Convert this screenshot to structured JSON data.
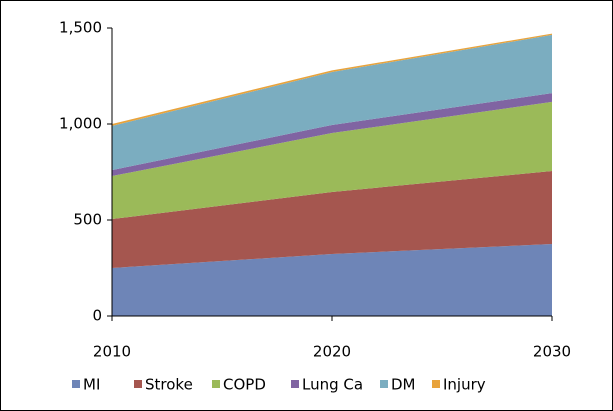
{
  "chart_data": {
    "type": "stacked_area",
    "x": [
      2010,
      2020,
      2030
    ],
    "series": [
      {
        "name": "MI",
        "color": "#6e85b7",
        "values": [
          250,
          323,
          375
        ]
      },
      {
        "name": "Stroke",
        "color": "#a5564f",
        "values": [
          255,
          323,
          380
        ]
      },
      {
        "name": "COPD",
        "color": "#9bba59",
        "values": [
          224,
          307,
          360
        ]
      },
      {
        "name": "Lung Ca",
        "color": "#8064a2",
        "values": [
          31,
          42,
          46
        ]
      },
      {
        "name": "DM",
        "color": "#7badc0",
        "values": [
          230,
          276,
          303
        ]
      },
      {
        "name": "Injury",
        "color": "#e8a33c",
        "values": [
          10,
          8,
          7
        ]
      }
    ],
    "xlim": [
      2010,
      2030
    ],
    "xticks": [
      2010,
      2020,
      2030
    ],
    "ylim": [
      0,
      1500
    ],
    "yticks": [
      0,
      500,
      {
        "value": 1000,
        "label": "1,000"
      },
      {
        "value": 1500,
        "label": "1,500"
      }
    ],
    "legend": "bottom"
  }
}
